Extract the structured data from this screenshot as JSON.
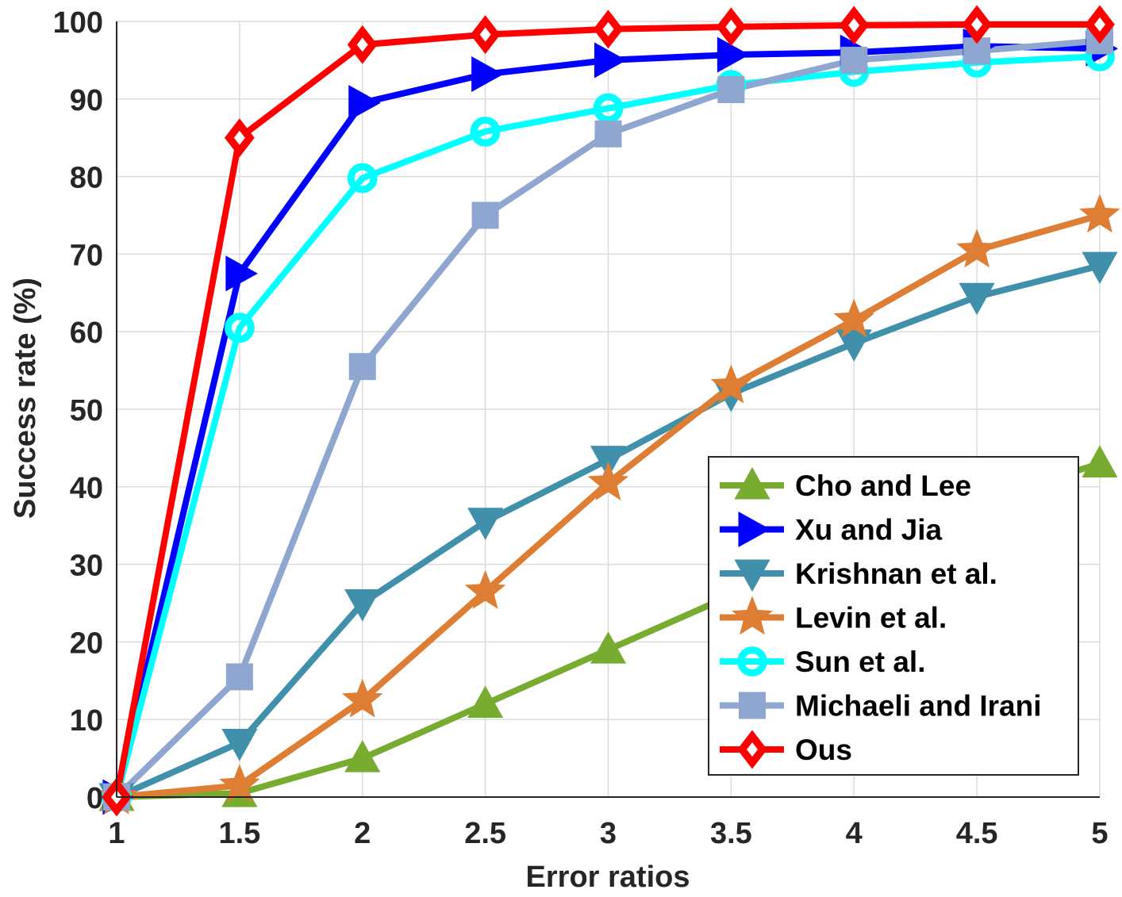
{
  "chart_data": {
    "type": "line",
    "title": "",
    "xlabel": "Error ratios",
    "ylabel": "Success rate (%)",
    "xlim": [
      1,
      5
    ],
    "ylim": [
      0,
      100
    ],
    "grid": true,
    "legend_position": "bottom-right",
    "x": [
      1,
      1.5,
      2,
      2.5,
      3,
      3.5,
      4,
      4.5,
      5
    ],
    "x_tick_labels": [
      "1",
      "1.5",
      "2",
      "2.5",
      "3",
      "3.5",
      "4",
      "4.5",
      "5"
    ],
    "y_tick_labels": [
      "0",
      "10",
      "20",
      "30",
      "40",
      "50",
      "60",
      "70",
      "80",
      "90",
      "100"
    ],
    "series": [
      {
        "name": "Cho and Lee",
        "color": "#77ac30",
        "marker": "triangle-up",
        "values": [
          0,
          0.5,
          5,
          12,
          19,
          26,
          33,
          38,
          43
        ]
      },
      {
        "name": "Xu and Jia",
        "color": "#0000ff",
        "marker": "triangle-right",
        "values": [
          0,
          67.5,
          89.5,
          93.2,
          95,
          95.7,
          96,
          96.8,
          96.5
        ]
      },
      {
        "name": "Krishnan et al.",
        "color": "#4190ab",
        "marker": "triangle-down",
        "values": [
          0,
          7,
          25,
          35.5,
          43.5,
          52,
          58.5,
          64.5,
          68.5
        ]
      },
      {
        "name": "Levin et al.",
        "color": "#de7e34",
        "marker": "star",
        "values": [
          0,
          1.5,
          12.5,
          26.5,
          40.5,
          53,
          61.5,
          70.5,
          75
        ]
      },
      {
        "name": "Sun et al.",
        "color": "#00ffff",
        "marker": "circle",
        "values": [
          0,
          60.5,
          79.8,
          85.8,
          88.8,
          91.8,
          93.5,
          94.7,
          95.5
        ]
      },
      {
        "name": "Michaeli and Irani",
        "color": "#8fa6d0",
        "marker": "square",
        "values": [
          0,
          15.5,
          55.5,
          75,
          85.5,
          91.2,
          95,
          96.2,
          97.5
        ]
      },
      {
        "name": "Ous",
        "color": "#ff0000",
        "marker": "diamond",
        "values": [
          0,
          85,
          97,
          98.3,
          99,
          99.3,
          99.5,
          99.6,
          99.6
        ]
      }
    ]
  }
}
